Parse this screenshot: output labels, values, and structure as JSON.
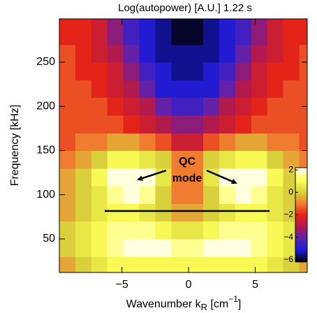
{
  "chart_data": {
    "type": "heatmap",
    "title": "Log(autopower) [A.U.]   1.22 s",
    "xlabel": [
      "Wavenumber k",
      "R",
      " [cm",
      "−1",
      "]"
    ],
    "ylabel": "Frequency [kHz]",
    "annotation": [
      "QC",
      "mode"
    ],
    "xlim": [
      -9.7,
      8.9
    ],
    "ylim": [
      12,
      299
    ],
    "xticks": [
      {
        "value": -5,
        "label": "−5"
      },
      0,
      5
    ],
    "yticks": [
      50,
      100,
      150,
      200,
      250
    ],
    "xbins": [
      -9.7,
      -8.5,
      -7.3,
      -6.1,
      -4.9,
      -3.7,
      -2.5,
      -1.3,
      -0.1,
      1.1,
      2.3,
      3.5,
      4.7,
      5.9,
      7.1,
      8.3,
      8.9
    ],
    "ybins": [
      12,
      30,
      50,
      70,
      90,
      110,
      130,
      150,
      170,
      190,
      210,
      230,
      250,
      270,
      299
    ],
    "z": [
      [
        -0.5,
        0,
        0.5,
        1,
        1,
        1,
        1,
        1,
        1,
        1,
        1,
        1,
        1,
        0.5,
        0,
        -0.5
      ],
      [
        0,
        0.5,
        1,
        1.5,
        2,
        2,
        2,
        1.5,
        1.5,
        2,
        2,
        2,
        1.5,
        1,
        0.5,
        0
      ],
      [
        0,
        0.5,
        1,
        1.5,
        1.5,
        1.5,
        1,
        0.5,
        0.5,
        1,
        1.5,
        1.5,
        1.5,
        1,
        0.5,
        0
      ],
      [
        -0.5,
        0,
        0.5,
        1,
        1,
        0.5,
        0,
        -0.5,
        -0.5,
        0,
        0.5,
        1,
        1,
        0.5,
        0,
        -0.5
      ],
      [
        -0.5,
        0,
        0.5,
        1.5,
        2,
        1.5,
        0,
        -1,
        -1,
        0,
        1.5,
        2,
        1.5,
        0.5,
        0,
        -0.5
      ],
      [
        -0.5,
        0,
        1,
        2,
        2,
        2,
        0.5,
        -1,
        -1,
        0.5,
        2,
        2,
        2,
        1,
        0,
        -0.5
      ],
      [
        -1,
        -0.5,
        0,
        1,
        1,
        0.5,
        0,
        -1,
        -1,
        0,
        0.5,
        1,
        1,
        0,
        -0.5,
        -1
      ],
      [
        -1.5,
        -1,
        -1,
        -0.5,
        -0.5,
        -1,
        -1.5,
        -2.5,
        -2.5,
        -1.5,
        -1,
        -0.5,
        -0.5,
        -1,
        -1,
        -1.5
      ],
      [
        -1.5,
        -1.5,
        -1.5,
        -1.5,
        -2,
        -2.5,
        -3,
        -3.5,
        -3.5,
        -3,
        -2.5,
        -2,
        -1.5,
        -1.5,
        -1.5,
        -1.5
      ],
      [
        -1.5,
        -1.5,
        -1.5,
        -2,
        -2.5,
        -3,
        -4,
        -4.5,
        -4.5,
        -4,
        -3,
        -2.5,
        -2,
        -1.5,
        -1.5,
        -1.5
      ],
      [
        -1.5,
        -1.5,
        -2,
        -2.5,
        -3,
        -4,
        -5,
        -5,
        -5,
        -5,
        -4,
        -3,
        -2.5,
        -2,
        -1.5,
        -1.5
      ],
      [
        -1.5,
        -2,
        -2,
        -2.5,
        -3.5,
        -4.5,
        -5,
        -5.5,
        -5.5,
        -5,
        -4.5,
        -3.5,
        -2.5,
        -2,
        -2,
        -1.5
      ],
      [
        -1.5,
        -2,
        -2.5,
        -3,
        -4,
        -5,
        -5.5,
        -5.5,
        -5.5,
        -5.5,
        -5,
        -4,
        -3,
        -2.5,
        -2,
        -1.5
      ],
      [
        -2,
        -2,
        -2.5,
        -3.5,
        -4.5,
        -5,
        -5.5,
        -6,
        -6,
        -5.5,
        -5,
        -4.5,
        -3.5,
        -2.5,
        -2,
        -2
      ]
    ],
    "clim": [
      -6.2,
      2.2
    ],
    "cticks": [
      2,
      0,
      {
        "value": -2,
        "label": "−2"
      },
      {
        "value": -4,
        "label": "−4"
      },
      {
        "value": -6,
        "label": "−6"
      }
    ],
    "colorscale": [
      "#000000",
      "#1a1ad8",
      "#5a22b0",
      "#b01850",
      "#e42418",
      "#f08030",
      "#d8d83c",
      "#ffff5a",
      "#ffffff"
    ]
  }
}
